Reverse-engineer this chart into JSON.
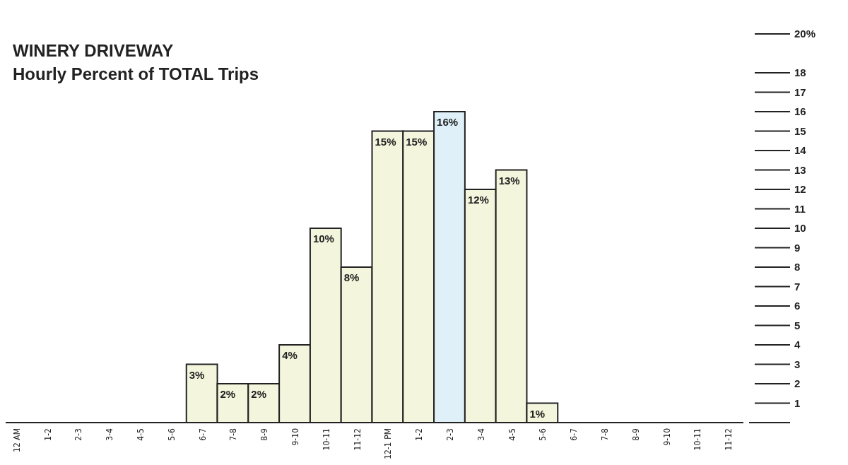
{
  "chart_data": {
    "type": "bar",
    "title": "WINERY DRIVEWAY",
    "subtitle": "Hourly Percent of TOTAL Trips",
    "categories": [
      "12 AM",
      "1-2",
      "2-3",
      "3-4",
      "4-5",
      "5-6",
      "6-7",
      "7-8",
      "8-9",
      "9-10",
      "10-11",
      "11-12",
      "12-1 PM",
      "1-2",
      "2-3",
      "3-4",
      "4-5",
      "5-6",
      "6-7",
      "7-8",
      "8-9",
      "9-10",
      "10-11",
      "11-12"
    ],
    "values": [
      0,
      0,
      0,
      0,
      0,
      0,
      3,
      2,
      2,
      4,
      10,
      8,
      15,
      15,
      16,
      12,
      13,
      1,
      0,
      0,
      0,
      0,
      0,
      0
    ],
    "value_labels": [
      null,
      null,
      null,
      null,
      null,
      null,
      "3%",
      "2%",
      "2%",
      "4%",
      "10%",
      "8%",
      "15%",
      "15%",
      "16%",
      "12%",
      "13%",
      "1%",
      null,
      null,
      null,
      null,
      null,
      null
    ],
    "colors": [
      "#f3f6dc",
      "#f3f6dc",
      "#f3f6dc",
      "#f3f6dc",
      "#f3f6dc",
      "#f3f6dc",
      "#f3f6dc",
      "#f3f6dc",
      "#f3f6dc",
      "#f3f6dc",
      "#f3f6dc",
      "#f3f6dc",
      "#f3f6dc",
      "#f3f6dc",
      "#dff0f8",
      "#f3f6dc",
      "#f3f6dc",
      "#f3f6dc",
      "#f3f6dc",
      "#f3f6dc",
      "#f3f6dc",
      "#f3f6dc",
      "#f3f6dc",
      "#f3f6dc"
    ],
    "ylim": [
      0,
      20
    ],
    "yticks": [
      1,
      2,
      3,
      4,
      5,
      6,
      7,
      8,
      9,
      10,
      11,
      12,
      13,
      14,
      15,
      16,
      17,
      18,
      {
        "value": 20,
        "label": "20%"
      }
    ]
  }
}
